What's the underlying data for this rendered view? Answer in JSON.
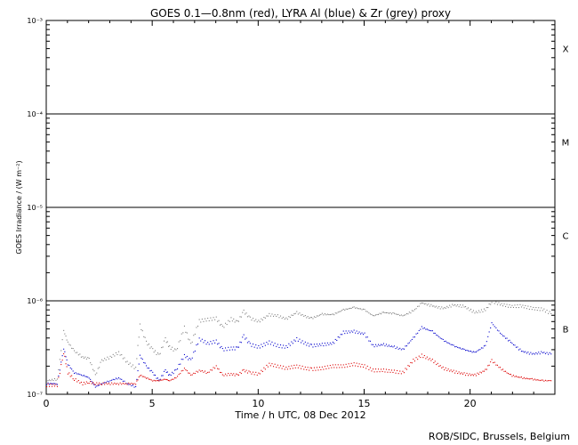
{
  "chart_data": {
    "type": "scatter",
    "title": "GOES 0.1—0.8nm (red), LYRA Al (blue) & Zr (grey) proxy",
    "xlabel": "Time / h UTC, 08 Dec 2012",
    "ylabel": "GOES Irradiance / (W m⁻²)",
    "xlim": [
      0,
      24
    ],
    "ylim": [
      1e-07,
      0.001
    ],
    "y_scale": "log",
    "x_ticks": [
      0,
      5,
      10,
      15,
      20
    ],
    "y_ticks": [
      {
        "value": 1e-07,
        "label": "10⁻⁷"
      },
      {
        "value": 1e-06,
        "label": "10⁻⁶"
      },
      {
        "value": 1e-05,
        "label": "10⁻⁵"
      },
      {
        "value": 0.0001,
        "label": "10⁻⁴"
      },
      {
        "value": 0.001,
        "label": "10⁻³"
      }
    ],
    "flare_class_lines": [
      1e-06,
      1e-05,
      0.0001
    ],
    "flare_classes": [
      {
        "label": "X",
        "value": 0.0005
      },
      {
        "label": "M",
        "value": 5e-05
      },
      {
        "label": "C",
        "value": 5e-06
      },
      {
        "label": "B",
        "value": 5e-07
      }
    ],
    "series": [
      {
        "color": "#808080",
        "values": [
          [
            0.0,
            1.4e-07
          ],
          [
            0.5,
            1.45e-07
          ],
          [
            0.8,
            4.8e-07
          ],
          [
            1.0,
            3.6e-07
          ],
          [
            1.3,
            2.9e-07
          ],
          [
            1.7,
            2.5e-07
          ],
          [
            2.0,
            2.4e-07
          ],
          [
            2.3,
            1.6e-07
          ],
          [
            2.6,
            2.3e-07
          ],
          [
            3.0,
            2.5e-07
          ],
          [
            3.4,
            2.8e-07
          ],
          [
            3.8,
            2.2e-07
          ],
          [
            4.2,
            1.9e-07
          ],
          [
            4.4,
            5.5e-07
          ],
          [
            4.7,
            3.6e-07
          ],
          [
            5.0,
            3e-07
          ],
          [
            5.3,
            2.6e-07
          ],
          [
            5.6,
            3.9e-07
          ],
          [
            5.8,
            3.2e-07
          ],
          [
            6.1,
            2.9e-07
          ],
          [
            6.5,
            5.2e-07
          ],
          [
            6.8,
            3.4e-07
          ],
          [
            7.2,
            6.1e-07
          ],
          [
            7.6,
            6.3e-07
          ],
          [
            8.0,
            6.5e-07
          ],
          [
            8.3,
            5.2e-07
          ],
          [
            8.7,
            6.4e-07
          ],
          [
            9.0,
            5.9e-07
          ],
          [
            9.3,
            7.7e-07
          ],
          [
            9.6,
            6.5e-07
          ],
          [
            10.0,
            6e-07
          ],
          [
            10.5,
            7.1e-07
          ],
          [
            10.9,
            6.9e-07
          ],
          [
            11.3,
            6.4e-07
          ],
          [
            11.8,
            7.5e-07
          ],
          [
            12.2,
            6.8e-07
          ],
          [
            12.5,
            6.5e-07
          ],
          [
            13.0,
            7.2e-07
          ],
          [
            13.5,
            7.1e-07
          ],
          [
            14.0,
            8e-07
          ],
          [
            14.5,
            8.5e-07
          ],
          [
            15.0,
            8e-07
          ],
          [
            15.4,
            6.9e-07
          ],
          [
            15.9,
            7.5e-07
          ],
          [
            16.4,
            7.3e-07
          ],
          [
            16.8,
            6.9e-07
          ],
          [
            17.3,
            7.8e-07
          ],
          [
            17.7,
            9.5e-07
          ],
          [
            18.2,
            8.8e-07
          ],
          [
            18.7,
            8.3e-07
          ],
          [
            19.2,
            9e-07
          ],
          [
            19.7,
            8.7e-07
          ],
          [
            20.2,
            7.5e-07
          ],
          [
            20.7,
            8e-07
          ],
          [
            21.0,
            9.8e-07
          ],
          [
            21.4,
            9.2e-07
          ],
          [
            21.9,
            8.7e-07
          ],
          [
            22.4,
            8.8e-07
          ],
          [
            22.9,
            8.3e-07
          ],
          [
            23.4,
            8.1e-07
          ],
          [
            23.8,
            7.3e-07
          ]
        ]
      },
      {
        "color": "#0000cc",
        "values": [
          [
            0.0,
            1.3e-07
          ],
          [
            0.5,
            1.3e-07
          ],
          [
            0.8,
            3.1e-07
          ],
          [
            1.0,
            2.1e-07
          ],
          [
            1.3,
            1.7e-07
          ],
          [
            1.7,
            1.6e-07
          ],
          [
            2.0,
            1.5e-07
          ],
          [
            2.3,
            1.2e-07
          ],
          [
            2.6,
            1.3e-07
          ],
          [
            3.0,
            1.4e-07
          ],
          [
            3.4,
            1.5e-07
          ],
          [
            3.8,
            1.3e-07
          ],
          [
            4.2,
            1.2e-07
          ],
          [
            4.4,
            2.6e-07
          ],
          [
            4.7,
            2e-07
          ],
          [
            5.0,
            1.7e-07
          ],
          [
            5.3,
            1.4e-07
          ],
          [
            5.6,
            1.8e-07
          ],
          [
            5.8,
            1.6e-07
          ],
          [
            6.1,
            1.8e-07
          ],
          [
            6.5,
            2.6e-07
          ],
          [
            6.8,
            2.3e-07
          ],
          [
            7.2,
            3.9e-07
          ],
          [
            7.6,
            3.5e-07
          ],
          [
            8.0,
            3.7e-07
          ],
          [
            8.3,
            3e-07
          ],
          [
            8.7,
            3.1e-07
          ],
          [
            9.0,
            3.1e-07
          ],
          [
            9.3,
            4.2e-07
          ],
          [
            9.6,
            3.4e-07
          ],
          [
            10.0,
            3.2e-07
          ],
          [
            10.5,
            3.6e-07
          ],
          [
            10.9,
            3.3e-07
          ],
          [
            11.3,
            3.2e-07
          ],
          [
            11.8,
            3.9e-07
          ],
          [
            12.2,
            3.5e-07
          ],
          [
            12.5,
            3.3e-07
          ],
          [
            13.0,
            3.4e-07
          ],
          [
            13.5,
            3.5e-07
          ],
          [
            14.0,
            4.6e-07
          ],
          [
            14.5,
            4.7e-07
          ],
          [
            15.0,
            4.4e-07
          ],
          [
            15.4,
            3.3e-07
          ],
          [
            15.9,
            3.4e-07
          ],
          [
            16.4,
            3.2e-07
          ],
          [
            16.8,
            3e-07
          ],
          [
            17.3,
            4e-07
          ],
          [
            17.7,
            5.2e-07
          ],
          [
            18.2,
            4.7e-07
          ],
          [
            18.7,
            3.8e-07
          ],
          [
            19.2,
            3.3e-07
          ],
          [
            19.7,
            3e-07
          ],
          [
            20.2,
            2.8e-07
          ],
          [
            20.7,
            3.3e-07
          ],
          [
            21.0,
            5.8e-07
          ],
          [
            21.4,
            4.5e-07
          ],
          [
            21.9,
            3.6e-07
          ],
          [
            22.4,
            2.9e-07
          ],
          [
            22.9,
            2.7e-07
          ],
          [
            23.4,
            2.8e-07
          ],
          [
            23.8,
            2.7e-07
          ]
        ]
      },
      {
        "color": "#dd0000",
        "values": [
          [
            0.0,
            1.25e-07
          ],
          [
            0.5,
            1.25e-07
          ],
          [
            0.8,
            2.8e-07
          ],
          [
            1.0,
            1.7e-07
          ],
          [
            1.3,
            1.45e-07
          ],
          [
            1.7,
            1.3e-07
          ],
          [
            2.0,
            1.35e-07
          ],
          [
            2.3,
            1.3e-07
          ],
          [
            2.6,
            1.3e-07
          ],
          [
            3.0,
            1.3e-07
          ],
          [
            3.4,
            1.3e-07
          ],
          [
            3.8,
            1.3e-07
          ],
          [
            4.2,
            1.3e-07
          ],
          [
            4.4,
            1.6e-07
          ],
          [
            4.7,
            1.5e-07
          ],
          [
            5.0,
            1.4e-07
          ],
          [
            5.3,
            1.4e-07
          ],
          [
            5.6,
            1.45e-07
          ],
          [
            5.8,
            1.4e-07
          ],
          [
            6.1,
            1.5e-07
          ],
          [
            6.5,
            1.9e-07
          ],
          [
            6.8,
            1.6e-07
          ],
          [
            7.2,
            1.8e-07
          ],
          [
            7.6,
            1.7e-07
          ],
          [
            8.0,
            2e-07
          ],
          [
            8.3,
            1.6e-07
          ],
          [
            8.7,
            1.65e-07
          ],
          [
            9.0,
            1.6e-07
          ],
          [
            9.3,
            1.8e-07
          ],
          [
            9.6,
            1.7e-07
          ],
          [
            10.0,
            1.65e-07
          ],
          [
            10.5,
            2.1e-07
          ],
          [
            10.9,
            2e-07
          ],
          [
            11.3,
            1.9e-07
          ],
          [
            11.8,
            2e-07
          ],
          [
            12.2,
            1.9e-07
          ],
          [
            12.5,
            1.85e-07
          ],
          [
            13.0,
            1.9e-07
          ],
          [
            13.5,
            2e-07
          ],
          [
            14.0,
            2e-07
          ],
          [
            14.5,
            2.1e-07
          ],
          [
            15.0,
            2e-07
          ],
          [
            15.4,
            1.8e-07
          ],
          [
            15.9,
            1.8e-07
          ],
          [
            16.4,
            1.75e-07
          ],
          [
            16.8,
            1.7e-07
          ],
          [
            17.3,
            2.3e-07
          ],
          [
            17.7,
            2.6e-07
          ],
          [
            18.2,
            2.3e-07
          ],
          [
            18.7,
            1.9e-07
          ],
          [
            19.2,
            1.75e-07
          ],
          [
            19.7,
            1.65e-07
          ],
          [
            20.2,
            1.6e-07
          ],
          [
            20.7,
            1.8e-07
          ],
          [
            21.0,
            2.3e-07
          ],
          [
            21.4,
            1.9e-07
          ],
          [
            21.9,
            1.6e-07
          ],
          [
            22.4,
            1.5e-07
          ],
          [
            22.9,
            1.45e-07
          ],
          [
            23.4,
            1.4e-07
          ],
          [
            23.8,
            1.4e-07
          ]
        ]
      }
    ],
    "credit": "ROB/SIDC, Brussels, Belgium"
  }
}
